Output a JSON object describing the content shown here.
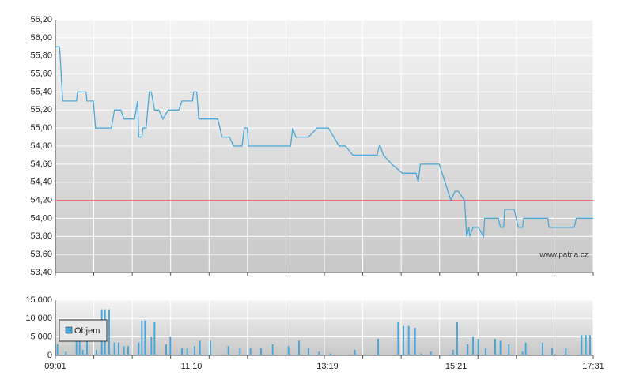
{
  "chart_data": [
    {
      "type": "line",
      "color": "#4aa8d8",
      "x": [
        "09:01",
        "09:05",
        "09:08",
        "09:21",
        "09:22",
        "09:30",
        "09:31",
        "09:37",
        "09:39",
        "09:54",
        "09:57",
        "10:03",
        "10:06",
        "10:16",
        "10:19",
        "10:20",
        "10:23",
        "10:24",
        "10:27",
        "10:30",
        "10:32",
        "10:35",
        "10:39",
        "10:43",
        "10:48",
        "10:58",
        "11:01",
        "11:11",
        "11:12",
        "11:15",
        "11:17",
        "11:35",
        "11:39",
        "11:46",
        "11:50",
        "11:58",
        "12:00",
        "12:03",
        "12:04",
        "12:44",
        "12:46",
        "12:49",
        "13:01",
        "13:09",
        "13:20",
        "13:30",
        "13:36",
        "13:43",
        "14:06",
        "14:08",
        "14:09",
        "14:12",
        "14:20",
        "14:30",
        "14:43",
        "14:45",
        "14:47",
        "15:05",
        "15:16",
        "15:20",
        "15:23",
        "15:29",
        "15:31",
        "15:33",
        "15:34",
        "15:37",
        "15:42",
        "15:47",
        "15:48",
        "16:01",
        "16:03",
        "16:06",
        "16:07",
        "16:16",
        "16:20",
        "16:24",
        "16:25",
        "16:48",
        "16:49",
        "17:13",
        "17:15",
        "17:31"
      ],
      "values": [
        55.9,
        55.9,
        55.3,
        55.3,
        55.4,
        55.4,
        55.3,
        55.3,
        55.0,
        55.0,
        55.2,
        55.2,
        55.1,
        55.1,
        55.3,
        54.9,
        54.9,
        55.0,
        55.0,
        55.4,
        55.4,
        55.2,
        55.2,
        55.1,
        55.2,
        55.2,
        55.3,
        55.3,
        55.4,
        55.4,
        55.1,
        55.1,
        54.9,
        54.9,
        54.8,
        54.8,
        55.0,
        55.0,
        54.8,
        54.8,
        55.0,
        54.9,
        54.9,
        55.0,
        55.0,
        54.8,
        54.8,
        54.7,
        54.7,
        54.8,
        54.8,
        54.7,
        54.6,
        54.5,
        54.5,
        54.4,
        54.6,
        54.6,
        54.2,
        54.3,
        54.3,
        54.2,
        53.8,
        53.9,
        53.8,
        53.9,
        53.9,
        53.8,
        54.0,
        54.0,
        53.9,
        53.9,
        54.1,
        54.1,
        53.9,
        53.9,
        54.0,
        54.0,
        53.9,
        53.9,
        54.0,
        54.0
      ],
      "xlim": [
        "09:01",
        "17:31"
      ],
      "ylim": [
        53.4,
        56.2
      ],
      "yticks": [
        {
          "value": 53.4,
          "label": "53,40"
        },
        {
          "value": 53.6,
          "label": "53,60"
        },
        {
          "value": 53.8,
          "label": "53,80"
        },
        {
          "value": 54.0,
          "label": "54,00"
        },
        {
          "value": 54.2,
          "label": "54,20"
        },
        {
          "value": 54.4,
          "label": "54,40"
        },
        {
          "value": 54.6,
          "label": "54,60"
        },
        {
          "value": 54.8,
          "label": "54,80"
        },
        {
          "value": 55.0,
          "label": "55,00"
        },
        {
          "value": 55.2,
          "label": "55,20"
        },
        {
          "value": 55.4,
          "label": "55,40"
        },
        {
          "value": 55.6,
          "label": "55,60"
        },
        {
          "value": 55.8,
          "label": "55,80"
        },
        {
          "value": 56.0,
          "label": "56,00"
        },
        {
          "value": 56.2,
          "label": "56,20"
        }
      ],
      "hline": {
        "value": 54.2,
        "color": "#e87070"
      },
      "annotation": "www.patria.cz",
      "grid": true
    },
    {
      "type": "bar",
      "x": [
        "09:03",
        "09:11",
        "09:21",
        "09:24",
        "09:27",
        "09:31",
        "09:40",
        "09:45",
        "09:48",
        "09:52",
        "09:57",
        "10:01",
        "10:06",
        "10:10",
        "10:20",
        "10:23",
        "10:26",
        "10:32",
        "10:35",
        "10:46",
        "10:50",
        "11:01",
        "11:06",
        "11:13",
        "11:18",
        "11:28",
        "11:45",
        "11:56",
        "12:06",
        "12:16",
        "12:27",
        "12:42",
        "12:52",
        "13:01",
        "13:11",
        "13:22",
        "13:45",
        "14:07",
        "14:26",
        "14:31",
        "14:36",
        "14:42",
        "14:48",
        "14:57",
        "15:18",
        "15:22",
        "15:32",
        "15:37",
        "15:42",
        "15:49",
        "15:58",
        "16:03",
        "16:11",
        "16:24",
        "16:27",
        "16:43",
        "16:52",
        "17:05",
        "17:20",
        "17:24",
        "17:28"
      ],
      "series": [
        {
          "name": "Objem",
          "color": "#4aa8d8",
          "values": [
            3000,
            1000,
            5000,
            5000,
            1500,
            4000,
            1500,
            12500,
            12500,
            12500,
            3500,
            3500,
            2500,
            2500,
            3500,
            9500,
            9500,
            5000,
            9000,
            3000,
            5000,
            2000,
            2000,
            2500,
            4000,
            4000,
            2500,
            2000,
            2000,
            2000,
            3000,
            2500,
            4000,
            2000,
            1000,
            500,
            1500,
            4500,
            9000,
            8000,
            8000,
            7500,
            500,
            1000,
            1500,
            9000,
            3000,
            5000,
            4500,
            2000,
            4500,
            4000,
            3000,
            1000,
            3500,
            3500,
            2000,
            2000,
            5500,
            5500,
            5500
          ]
        }
      ],
      "xlim": [
        "09:01",
        "17:31"
      ],
      "xticks": [
        "09:01",
        "11:10",
        "13:19",
        "15:21",
        "17:31"
      ],
      "ylim": [
        0,
        15000
      ],
      "yticks": [
        0,
        {
          "value": 5000,
          "label": "5 000"
        },
        {
          "value": 10000,
          "label": "10 000"
        },
        {
          "value": 15000,
          "label": "15 000"
        }
      ],
      "grid": true
    }
  ]
}
